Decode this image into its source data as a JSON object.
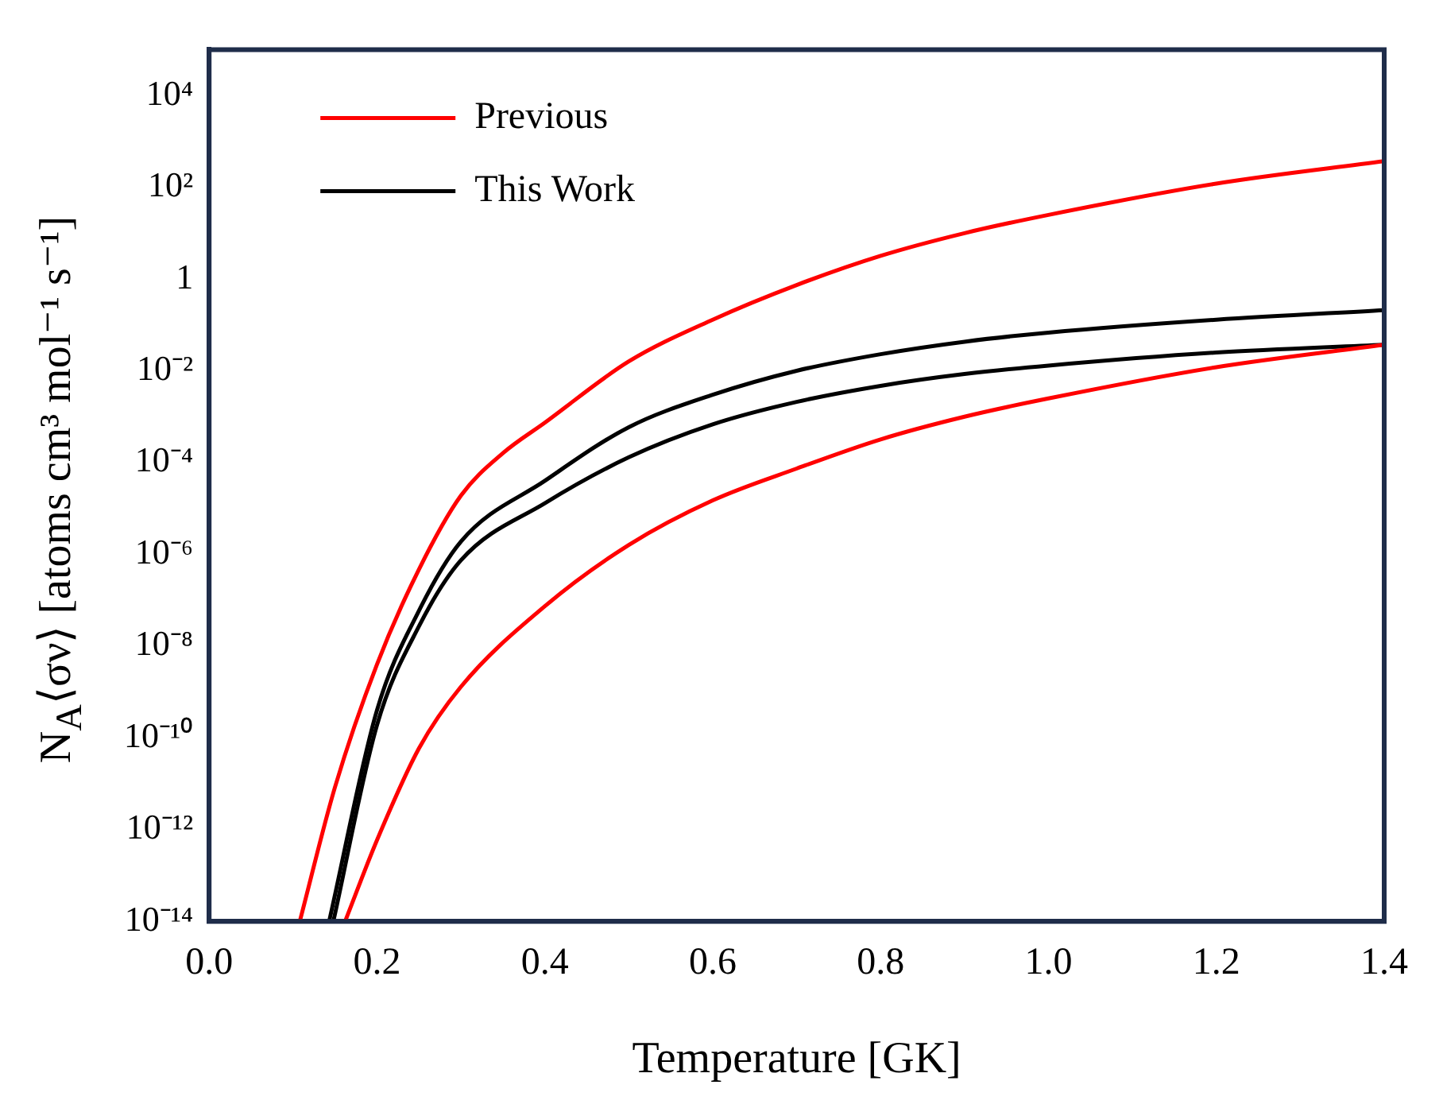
{
  "chart_data": {
    "type": "line",
    "xlabel": "Temperature [GK]",
    "ylabel": "N$_{A}$⟨σν⟩ [atoms cm³ mol⁻¹ s⁻¹]",
    "log": "y",
    "grid": false,
    "legend": "top left",
    "marker": "none",
    "line_style": "solid",
    "xlim": [
      0,
      1.4
    ],
    "xticks": [
      {
        "value": 0,
        "label": "0.0"
      },
      0.2,
      0.4,
      0.6,
      0.8,
      {
        "value": 1,
        "label": "1.0"
      },
      1.2,
      1.4
    ],
    "ylim": [
      1e-14,
      100000.0
    ],
    "yticks": [
      {
        "value": 1e-14,
        "label": "10⁻¹⁴"
      },
      {
        "value": 1e-12,
        "label": "10⁻¹²"
      },
      {
        "value": 1e-10,
        "label": "10⁻¹⁰"
      },
      {
        "value": 1e-08,
        "label": "10⁻⁸"
      },
      {
        "value": 1e-06,
        "label": "10⁻⁶"
      },
      {
        "value": 0.0001,
        "label": "10⁻⁴"
      },
      {
        "value": 0.01,
        "label": "10⁻²"
      },
      1,
      {
        "value": 100,
        "label": "10²"
      },
      {
        "value": 10000,
        "label": "10⁴"
      }
    ],
    "series": [
      {
        "name": "Previous",
        "color": "#ff0000",
        "x": [
          0.108,
          0.15,
          0.2,
          0.25,
          0.3,
          0.35,
          0.4,
          0.5,
          0.6,
          0.7,
          0.8,
          0.9,
          1.0,
          1.2,
          1.4
        ],
        "values": [
          1e-14,
          8.5e-12,
          4e-09,
          4.7e-07,
          1.9e-05,
          0.00016,
          0.00074,
          0.016,
          0.13,
          0.74,
          3.2,
          10,
          25,
          120,
          370
        ]
      },
      {
        "color": "#ff0000",
        "x": [
          0.162,
          0.2,
          0.25,
          0.3,
          0.4,
          0.5,
          0.6,
          0.7,
          0.8,
          0.9,
          1.0,
          1.2,
          1.4
        ],
        "values": [
          1e-14,
          5.9e-13,
          5.9e-11,
          1.3e-09,
          7.4e-08,
          1.6e-06,
          1.5e-05,
          7.4e-05,
          0.00032,
          0.001,
          0.0025,
          0.012,
          0.037
        ]
      },
      {
        "name": "This Work",
        "color": "#000000",
        "x": [
          0.143,
          0.2,
          0.25,
          0.3,
          0.4,
          0.5,
          0.6,
          0.7,
          0.8,
          0.9,
          1.0,
          1.2,
          1.4
        ],
        "values": [
          1e-14,
          4e-10,
          5.9e-08,
          1.9e-06,
          4e-05,
          0.00059,
          0.003,
          0.01,
          0.023,
          0.043,
          0.068,
          0.13,
          0.21
        ]
      },
      {
        "color": "#000000",
        "x": [
          0.148,
          0.2,
          0.25,
          0.3,
          0.4,
          0.5,
          0.6,
          0.7,
          0.8,
          0.9,
          1.0,
          1.2,
          1.4
        ],
        "values": [
          1e-14,
          1.9e-10,
          2.7e-08,
          7.4e-07,
          1.3e-05,
          0.00013,
          0.00068,
          0.0021,
          0.0047,
          0.0085,
          0.013,
          0.025,
          0.037
        ]
      }
    ]
  }
}
